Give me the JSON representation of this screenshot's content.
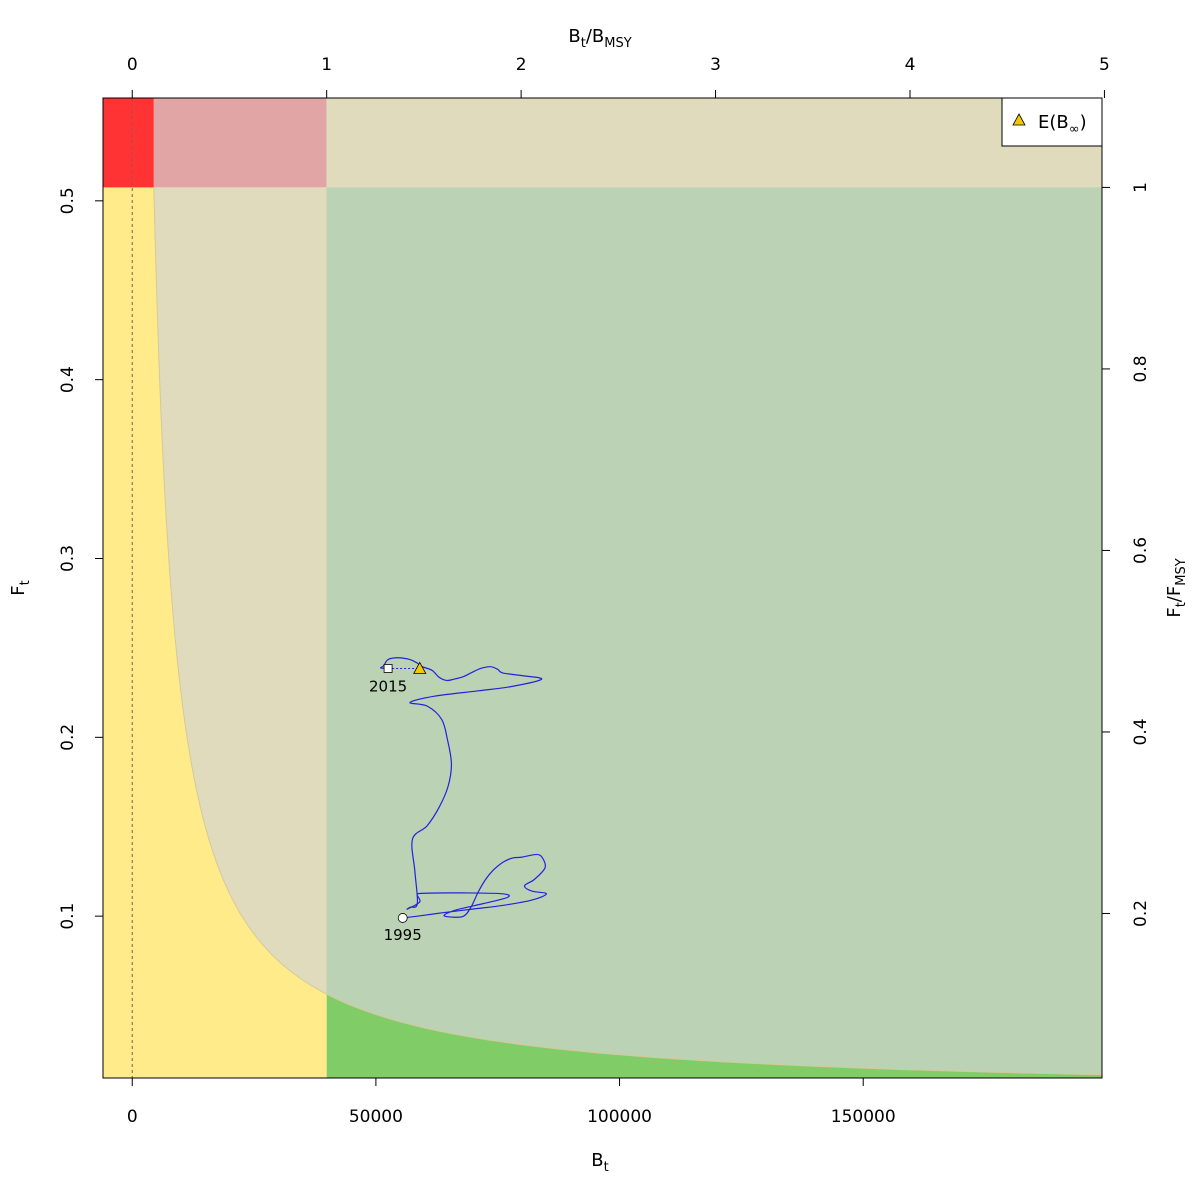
{
  "chart_data": {
    "type": "line",
    "title": "",
    "x_axis_bottom": {
      "label_main": "B",
      "label_sub": "t",
      "range": [
        -6000,
        199000
      ],
      "ticks": [
        0,
        50000,
        100000,
        150000
      ],
      "tick_labels": [
        "0",
        "50000",
        "100000",
        "150000"
      ]
    },
    "x_axis_top": {
      "label_main": "B",
      "label_sub": "t",
      "label_sep": "/B",
      "label_sub2": "MSY",
      "bmsy": 39900,
      "ticks": [
        0,
        1,
        2,
        3,
        4,
        5
      ],
      "tick_labels": [
        "0",
        "1",
        "2",
        "3",
        "4",
        "5"
      ]
    },
    "y_axis_left": {
      "label_main": "F",
      "label_sub": "t",
      "range": [
        0.0095,
        0.5575
      ],
      "ticks": [
        0.1,
        0.2,
        0.3,
        0.4,
        0.5
      ],
      "tick_labels": [
        "0.1",
        "0.2",
        "0.3",
        "0.4",
        "0.5"
      ]
    },
    "y_axis_right": {
      "label_main": "F",
      "label_sub": "t",
      "label_sep": "/F",
      "label_sub2": "MSY",
      "fmsy": 0.5075,
      "ticks": [
        0.2,
        0.4,
        0.6,
        0.8,
        1
      ],
      "tick_labels": [
        "0.2",
        "0.4",
        "0.6",
        "0.8",
        "1"
      ]
    },
    "reference": {
      "bmsy": 39900,
      "fmsy": 0.5075,
      "msy": 2250,
      "dashed_vline_x": 0
    },
    "zones": {
      "colors": {
        "overfished_overfishing": "#ff3333",
        "overfishing": "#e2a5a5",
        "overfished": "#ffeb8a",
        "transition": "#e1dbbe",
        "sustainable_light": "#bbd3b4",
        "sustainable_dark": "#80cc66",
        "catch_curve": "#d3c99a"
      }
    },
    "series": [
      {
        "color": "#2222dd",
        "points": [
          [
            55500,
            0.099
          ],
          [
            58500,
            0.1
          ],
          [
            64000,
            0.102
          ],
          [
            70000,
            0.104
          ],
          [
            76000,
            0.106
          ],
          [
            82000,
            0.109
          ],
          [
            85000,
            0.1125
          ],
          [
            82000,
            0.114
          ],
          [
            80500,
            0.117
          ],
          [
            82500,
            0.1205
          ],
          [
            84700,
            0.127
          ],
          [
            84200,
            0.1325
          ],
          [
            83000,
            0.1345
          ],
          [
            80000,
            0.133
          ],
          [
            78000,
            0.1325
          ],
          [
            76000,
            0.13
          ],
          [
            74000,
            0.1255
          ],
          [
            72500,
            0.1205
          ],
          [
            71000,
            0.1135
          ],
          [
            69500,
            0.105
          ],
          [
            68000,
            0.1
          ],
          [
            65500,
            0.0995
          ],
          [
            64000,
            0.1005
          ],
          [
            66500,
            0.1035
          ],
          [
            72000,
            0.107
          ],
          [
            77000,
            0.1105
          ],
          [
            76000,
            0.1125
          ],
          [
            68000,
            0.113
          ],
          [
            60000,
            0.1128
          ],
          [
            58500,
            0.112
          ],
          [
            59000,
            0.108
          ],
          [
            56500,
            0.104
          ],
          [
            57000,
            0.105
          ],
          [
            58500,
            0.107
          ],
          [
            58000,
            0.125
          ],
          [
            57500,
            0.143
          ],
          [
            60500,
            0.1505
          ],
          [
            63000,
            0.161
          ],
          [
            64800,
            0.1725
          ],
          [
            65500,
            0.185
          ],
          [
            64700,
            0.1985
          ],
          [
            63500,
            0.21
          ],
          [
            60500,
            0.2175
          ],
          [
            57000,
            0.2195
          ],
          [
            62000,
            0.223
          ],
          [
            71000,
            0.226
          ],
          [
            78000,
            0.2285
          ],
          [
            84000,
            0.2325
          ],
          [
            80000,
            0.2345
          ],
          [
            76000,
            0.236
          ],
          [
            75000,
            0.238
          ],
          [
            73500,
            0.2395
          ],
          [
            71500,
            0.2385
          ],
          [
            69500,
            0.236
          ],
          [
            68000,
            0.234
          ],
          [
            66000,
            0.2325
          ],
          [
            64500,
            0.2318
          ],
          [
            63000,
            0.2335
          ],
          [
            61500,
            0.2375
          ],
          [
            59500,
            0.2395
          ],
          [
            58500,
            0.2415
          ],
          [
            57000,
            0.2435
          ],
          [
            54500,
            0.2445
          ],
          [
            52500,
            0.2435
          ],
          [
            51600,
            0.24
          ],
          [
            51000,
            0.2388
          ],
          [
            52500,
            0.2385
          ]
        ]
      }
    ],
    "points": [
      {
        "label": "1995",
        "x": 55500,
        "y": 0.099,
        "shape": "circle",
        "fill": "#ffffff"
      },
      {
        "label": "2015",
        "x": 52500,
        "y": 0.2385,
        "shape": "square",
        "fill": "#ffffff"
      },
      {
        "x": 59000,
        "y": 0.2385,
        "shape": "triangle",
        "fill": "#f2c800"
      }
    ],
    "forecast_segment": {
      "from": [
        52500,
        0.2385
      ],
      "to": [
        59000,
        0.2385
      ],
      "style": "dashed"
    },
    "legend": {
      "position": "top-right",
      "entries": [
        {
          "main": "E(B",
          "sub": "∞",
          "close": ")",
          "shape": "triangle",
          "fill": "#f2c800"
        }
      ]
    }
  }
}
